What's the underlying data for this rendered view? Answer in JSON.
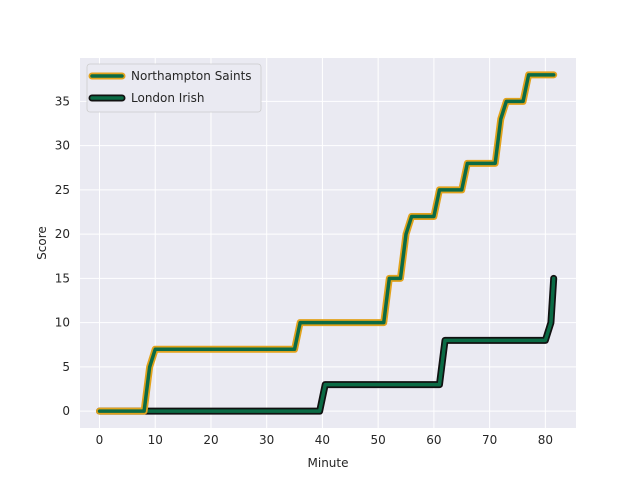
{
  "chart_data": {
    "type": "line",
    "title": "",
    "xlabel": "Minute",
    "ylabel": "Score",
    "xlim": [
      -3.5,
      85.5
    ],
    "ylim": [
      -1.9,
      39.9
    ],
    "xticks": [
      0,
      10,
      20,
      30,
      40,
      50,
      60,
      70,
      80
    ],
    "yticks": [
      0,
      5,
      10,
      15,
      20,
      25,
      30,
      35
    ],
    "grid": true,
    "legend_position": "top-left",
    "background_color": "#eaeaf2",
    "series": [
      {
        "name": "Northampton Saints",
        "color": "#0b6b45",
        "outline_color": "#e2a21b",
        "points": [
          [
            0,
            0
          ],
          [
            8,
            0
          ],
          [
            9,
            5
          ],
          [
            10,
            7
          ],
          [
            35,
            7
          ],
          [
            36,
            10
          ],
          [
            51,
            10
          ],
          [
            52,
            15
          ],
          [
            54,
            15
          ],
          [
            55,
            20
          ],
          [
            56,
            22
          ],
          [
            60,
            22
          ],
          [
            61,
            25
          ],
          [
            65,
            25
          ],
          [
            66,
            28
          ],
          [
            71,
            28
          ],
          [
            72,
            33
          ],
          [
            73,
            35
          ],
          [
            76,
            35
          ],
          [
            77,
            38
          ],
          [
            81.5,
            38
          ]
        ]
      },
      {
        "name": "London Irish",
        "color": "#0b6b45",
        "outline_color": "#111111",
        "points": [
          [
            0,
            0
          ],
          [
            39.5,
            0
          ],
          [
            40.5,
            3
          ],
          [
            61,
            3
          ],
          [
            62,
            8
          ],
          [
            80,
            8
          ],
          [
            81,
            10
          ],
          [
            81.5,
            15
          ]
        ]
      }
    ]
  }
}
